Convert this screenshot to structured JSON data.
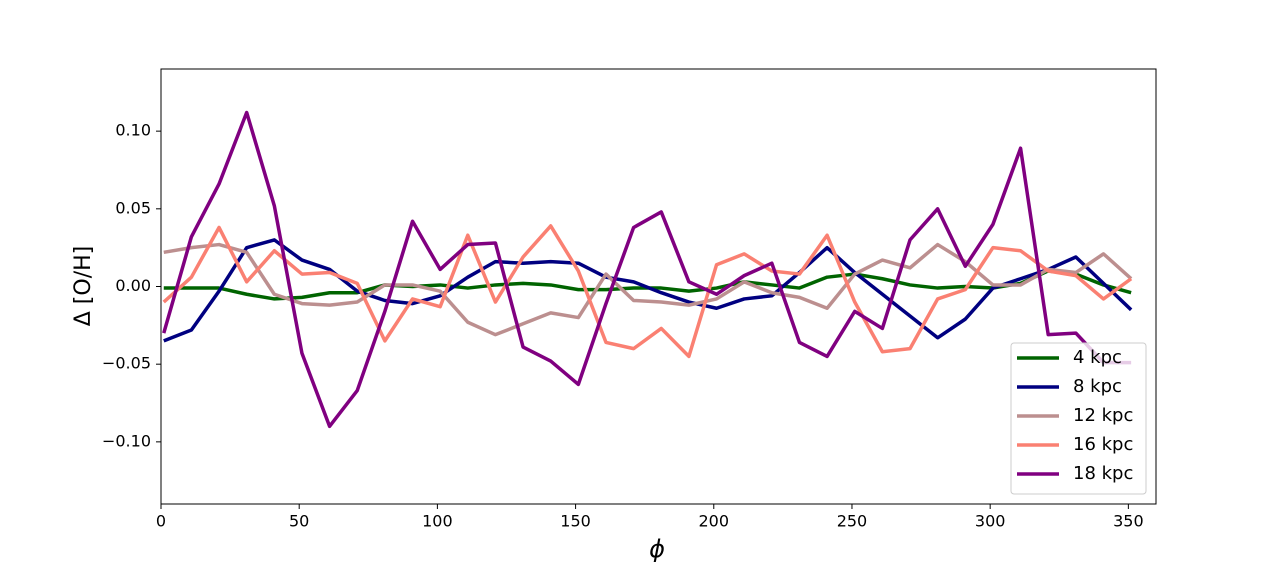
{
  "chart_data": {
    "type": "line",
    "xlabel": "ϕ",
    "ylabel": "Δ [O/H]",
    "x": [
      1,
      11,
      21,
      31,
      41,
      51,
      61,
      71,
      81,
      91,
      101,
      111,
      121,
      131,
      141,
      151,
      161,
      171,
      181,
      191,
      201,
      211,
      221,
      231,
      241,
      251,
      261,
      271,
      281,
      291,
      301,
      311,
      321,
      331,
      341,
      351
    ],
    "series": [
      {
        "name": "4 kpc",
        "color": "#006400",
        "values": [
          -0.001,
          -0.001,
          -0.001,
          -0.005,
          -0.008,
          -0.007,
          -0.004,
          -0.004,
          0.001,
          0.0,
          0.001,
          -0.001,
          0.001,
          0.002,
          0.001,
          -0.002,
          -0.002,
          -0.001,
          -0.001,
          -0.003,
          -0.001,
          0.003,
          0.001,
          -0.001,
          0.006,
          0.008,
          0.005,
          0.001,
          -0.001,
          0.0,
          -0.001,
          0.002,
          0.01,
          0.008,
          0.001,
          -0.004
        ]
      },
      {
        "name": "8 kpc",
        "color": "#000080",
        "values": [
          -0.035,
          -0.028,
          -0.003,
          0.025,
          0.03,
          0.017,
          0.011,
          -0.003,
          -0.009,
          -0.011,
          -0.006,
          0.006,
          0.016,
          0.015,
          0.016,
          0.015,
          0.006,
          0.003,
          -0.004,
          -0.01,
          -0.014,
          -0.008,
          -0.006,
          0.009,
          0.025,
          0.009,
          -0.005,
          -0.019,
          -0.033,
          -0.021,
          -0.001,
          0.005,
          0.011,
          0.019,
          0.002,
          -0.015
        ]
      },
      {
        "name": "12 kpc",
        "color": "#bc8f8f",
        "values": [
          0.022,
          0.025,
          0.027,
          0.022,
          -0.005,
          -0.011,
          -0.012,
          -0.01,
          0.001,
          0.001,
          -0.003,
          -0.023,
          -0.031,
          -0.024,
          -0.017,
          -0.02,
          0.008,
          -0.009,
          -0.01,
          -0.012,
          -0.008,
          0.003,
          -0.004,
          -0.007,
          -0.014,
          0.008,
          0.017,
          0.012,
          0.027,
          0.016,
          0.001,
          0.001,
          0.011,
          0.009,
          0.021,
          0.005
        ]
      },
      {
        "name": "16 kpc",
        "color": "#fa8072",
        "values": [
          -0.01,
          0.006,
          0.038,
          0.003,
          0.023,
          0.008,
          0.009,
          0.002,
          -0.035,
          -0.008,
          -0.013,
          0.033,
          -0.01,
          0.019,
          0.039,
          0.01,
          -0.036,
          -0.04,
          -0.027,
          -0.045,
          0.014,
          0.021,
          0.01,
          0.008,
          0.033,
          -0.01,
          -0.042,
          -0.04,
          -0.008,
          -0.002,
          0.025,
          0.023,
          0.01,
          0.007,
          -0.008,
          0.005
        ]
      },
      {
        "name": "18 kpc",
        "color": "#800080",
        "values": [
          -0.03,
          0.032,
          0.066,
          0.112,
          0.052,
          -0.043,
          -0.09,
          -0.067,
          -0.016,
          0.042,
          0.011,
          0.027,
          0.028,
          -0.039,
          -0.048,
          -0.063,
          -0.011,
          0.038,
          0.048,
          0.003,
          -0.005,
          0.007,
          0.015,
          -0.036,
          -0.045,
          -0.016,
          -0.027,
          0.03,
          0.05,
          0.013,
          0.04,
          0.089,
          -0.031,
          -0.03,
          -0.049,
          -0.049
        ]
      }
    ],
    "xlim": [
      0,
      360
    ],
    "xticks": [
      0,
      50,
      100,
      150,
      200,
      250,
      300,
      350
    ],
    "ylim": [
      -0.14,
      0.14
    ],
    "yticks": [
      {
        "value": -0.1,
        "label": "−0.10"
      },
      {
        "value": -0.05,
        "label": "−0.05"
      },
      {
        "value": 0,
        "label": "0.00"
      },
      {
        "value": 0.05,
        "label": "0.05"
      },
      {
        "value": 0.1,
        "label": "0.10"
      }
    ],
    "legend": "lower right"
  }
}
